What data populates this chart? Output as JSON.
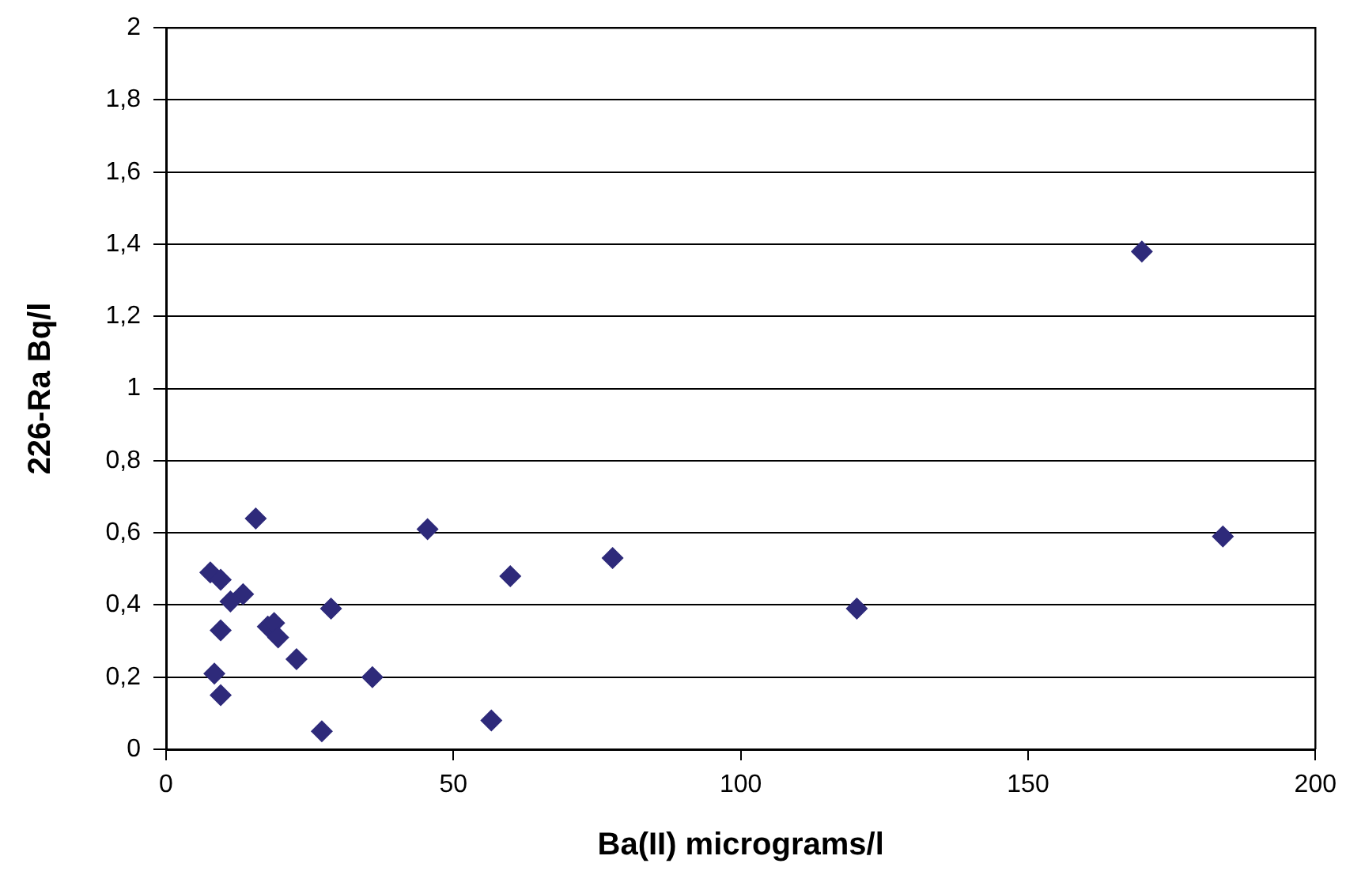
{
  "chart_data": {
    "type": "scatter",
    "xlabel": "Ba(II) micrograms/l",
    "ylabel": "226-Ra Bq/l",
    "x": [
      15.6,
      45.5,
      59.9,
      7.7,
      9.5,
      13.4,
      11.2,
      28.7,
      9.5,
      17.7,
      18.8,
      19.5,
      22.7,
      8.4,
      35.9,
      9.5,
      27.1,
      56.6,
      77.7,
      120.2,
      169.8,
      183.9
    ],
    "values": [
      0.64,
      0.61,
      0.48,
      0.49,
      0.47,
      0.43,
      0.41,
      0.39,
      0.33,
      0.34,
      0.35,
      0.31,
      0.25,
      0.21,
      0.2,
      0.15,
      0.05,
      0.08,
      0.53,
      0.39,
      1.38,
      0.59
    ],
    "color": "#2e2a7a",
    "marker": "diamond",
    "grid": "y",
    "legend": false,
    "xlim": [
      0,
      200
    ],
    "xticks": [
      0,
      50,
      100,
      150,
      200
    ],
    "ylim": [
      0,
      2
    ],
    "yticks": [
      0,
      {
        "value": 0.2,
        "label": "0,2"
      },
      {
        "value": 0.4,
        "label": "0,4"
      },
      {
        "value": 0.6,
        "label": "0,6"
      },
      {
        "value": 0.8,
        "label": "0,8"
      },
      1,
      {
        "value": 1.2,
        "label": "1,2"
      },
      {
        "value": 1.4,
        "label": "1,4"
      },
      {
        "value": 1.6,
        "label": "1,6"
      },
      {
        "value": 1.8,
        "label": "1,8"
      },
      2
    ]
  }
}
